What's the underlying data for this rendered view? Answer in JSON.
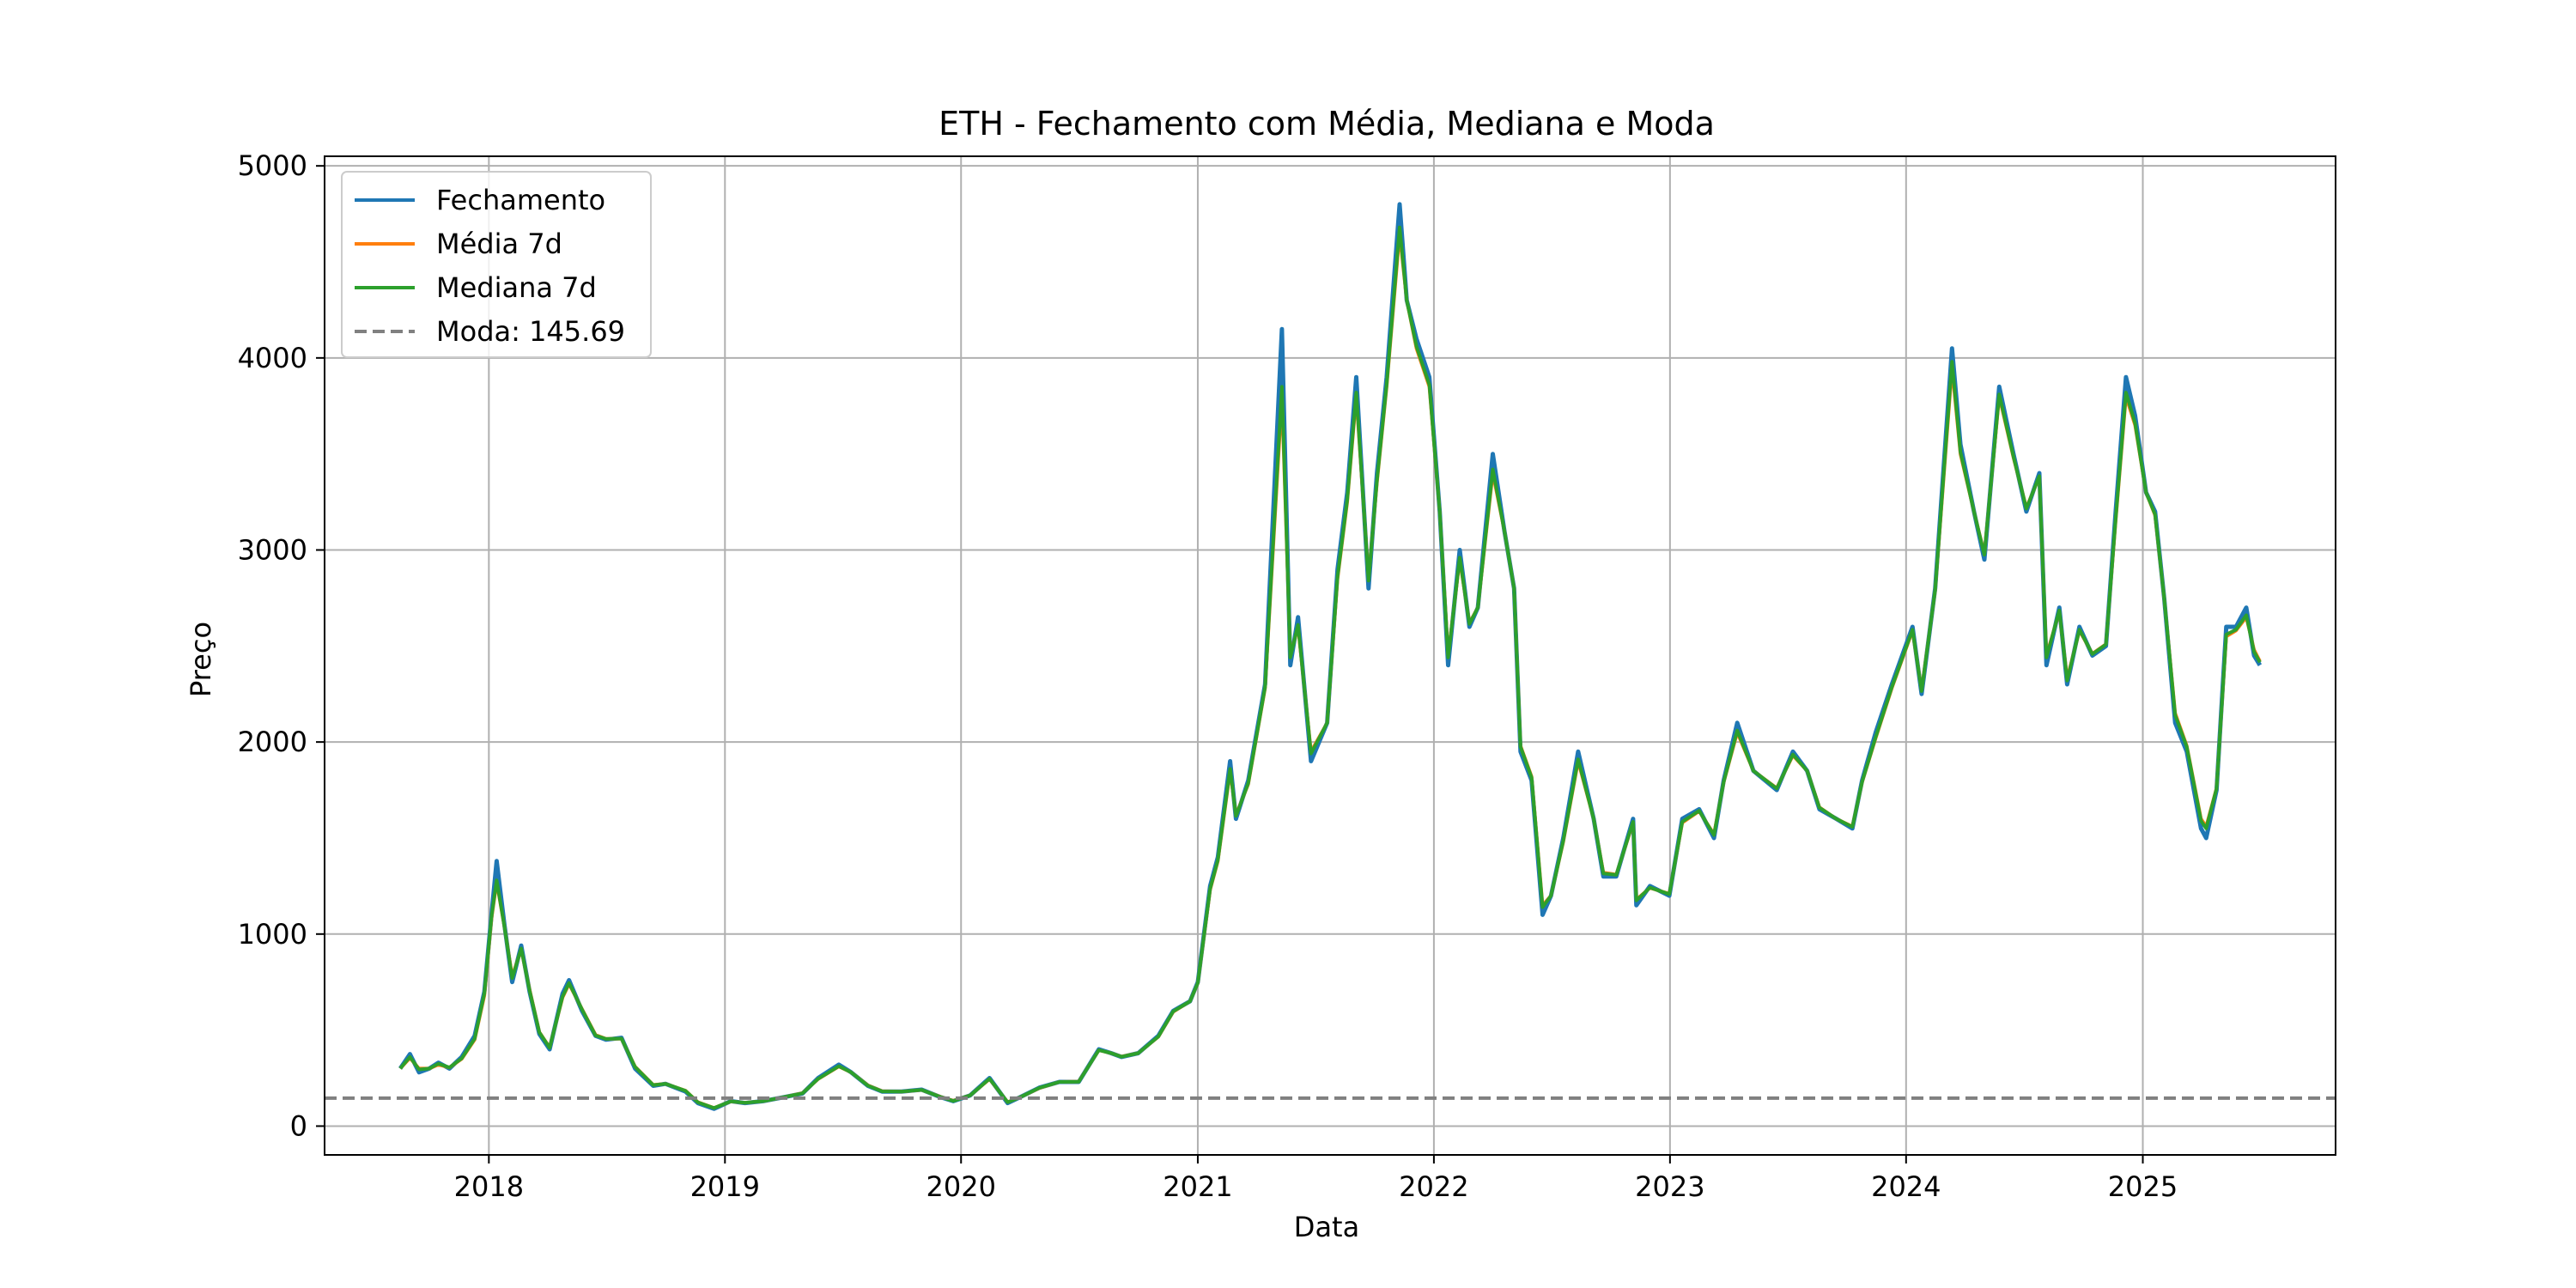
{
  "chart_data": {
    "type": "line",
    "title": "ETH - Fechamento com Média, Mediana e Moda",
    "xlabel": "Data",
    "ylabel": "Preço",
    "xlim": [
      "2017-04-22",
      "2025-10-26"
    ],
    "ylim": [
      -150,
      5050
    ],
    "x_ticks": [
      "2018",
      "2019",
      "2020",
      "2021",
      "2022",
      "2023",
      "2024",
      "2025"
    ],
    "y_ticks": [
      0,
      1000,
      2000,
      3000,
      4000,
      5000
    ],
    "grid": true,
    "legend_position": "upper-left",
    "mode_value": 145.69,
    "series": [
      {
        "name": "Fechamento",
        "color": "#1f77b4",
        "style": "solid"
      },
      {
        "name": "Média 7d",
        "color": "#ff7f0e",
        "style": "solid"
      },
      {
        "name": "Mediana 7d",
        "color": "#2ca02c",
        "style": "solid"
      },
      {
        "name": "Moda: 145.69",
        "color": "#808080",
        "style": "dashed"
      }
    ],
    "x": [
      "2017-08-17",
      "2017-09-01",
      "2017-09-15",
      "2017-10-01",
      "2017-10-15",
      "2017-11-01",
      "2017-11-20",
      "2017-12-10",
      "2017-12-25",
      "2018-01-05",
      "2018-01-13",
      "2018-01-25",
      "2018-02-06",
      "2018-02-20",
      "2018-03-05",
      "2018-03-20",
      "2018-04-05",
      "2018-04-25",
      "2018-05-05",
      "2018-05-25",
      "2018-06-15",
      "2018-07-01",
      "2018-07-25",
      "2018-08-15",
      "2018-09-12",
      "2018-10-01",
      "2018-11-01",
      "2018-11-20",
      "2018-12-15",
      "2019-01-10",
      "2019-02-01",
      "2019-03-01",
      "2019-04-01",
      "2019-05-01",
      "2019-05-25",
      "2019-06-26",
      "2019-07-15",
      "2019-08-10",
      "2019-09-01",
      "2019-10-01",
      "2019-11-01",
      "2019-12-01",
      "2019-12-20",
      "2020-01-15",
      "2020-02-14",
      "2020-03-13",
      "2020-04-01",
      "2020-05-01",
      "2020-06-01",
      "2020-07-01",
      "2020-08-01",
      "2020-08-20",
      "2020-09-05",
      "2020-10-01",
      "2020-11-01",
      "2020-11-24",
      "2020-12-20",
      "2021-01-01",
      "2021-01-20",
      "2021-02-01",
      "2021-02-20",
      "2021-03-01",
      "2021-03-20",
      "2021-04-15",
      "2021-05-11",
      "2021-05-24",
      "2021-06-05",
      "2021-06-25",
      "2021-07-20",
      "2021-08-05",
      "2021-08-20",
      "2021-09-03",
      "2021-09-22",
      "2021-10-05",
      "2021-10-20",
      "2021-11-09",
      "2021-11-20",
      "2021-12-05",
      "2021-12-25",
      "2022-01-10",
      "2022-01-23",
      "2022-02-10",
      "2022-02-25",
      "2022-03-10",
      "2022-04-02",
      "2022-04-20",
      "2022-05-05",
      "2022-05-15",
      "2022-06-01",
      "2022-06-18",
      "2022-07-01",
      "2022-07-20",
      "2022-08-12",
      "2022-09-05",
      "2022-09-20",
      "2022-10-10",
      "2022-11-05",
      "2022-11-10",
      "2022-12-01",
      "2022-12-31",
      "2023-01-20",
      "2023-02-15",
      "2023-03-10",
      "2023-03-25",
      "2023-04-15",
      "2023-05-10",
      "2023-06-15",
      "2023-07-10",
      "2023-08-01",
      "2023-08-20",
      "2023-09-15",
      "2023-10-10",
      "2023-10-25",
      "2023-11-15",
      "2023-12-10",
      "2024-01-11",
      "2024-01-25",
      "2024-02-15",
      "2024-03-12",
      "2024-03-25",
      "2024-04-15",
      "2024-05-01",
      "2024-05-24",
      "2024-06-15",
      "2024-07-05",
      "2024-07-25",
      "2024-08-05",
      "2024-08-25",
      "2024-09-06",
      "2024-09-25",
      "2024-10-15",
      "2024-11-05",
      "2024-11-20",
      "2024-12-06",
      "2024-12-20",
      "2025-01-06",
      "2025-01-20",
      "2025-02-03",
      "2025-02-20",
      "2025-03-10",
      "2025-04-01",
      "2025-04-09",
      "2025-04-25",
      "2025-05-10",
      "2025-05-25",
      "2025-06-10",
      "2025-06-22",
      "2025-07-01"
    ],
    "close": [
      300,
      375,
      280,
      300,
      330,
      300,
      360,
      470,
      700,
      1100,
      1380,
      1050,
      750,
      940,
      700,
      480,
      400,
      690,
      760,
      600,
      470,
      450,
      460,
      300,
      210,
      220,
      180,
      120,
      90,
      130,
      120,
      130,
      150,
      170,
      250,
      320,
      280,
      210,
      180,
      180,
      190,
      150,
      130,
      160,
      250,
      120,
      150,
      200,
      230,
      230,
      400,
      380,
      360,
      380,
      470,
      600,
      650,
      750,
      1250,
      1400,
      1900,
      1600,
      1800,
      2300,
      4150,
      2400,
      2650,
      1900,
      2100,
      2900,
      3300,
      3900,
      2800,
      3400,
      3900,
      4800,
      4300,
      4100,
      3900,
      3200,
      2400,
      3000,
      2600,
      2700,
      3500,
      3100,
      2800,
      1950,
      1800,
      1100,
      1200,
      1500,
      1950,
      1600,
      1300,
      1300,
      1600,
      1150,
      1250,
      1200,
      1600,
      1650,
      1500,
      1800,
      2100,
      1850,
      1750,
      1950,
      1850,
      1650,
      1600,
      1550,
      1800,
      2050,
      2300,
      2600,
      2250,
      2800,
      4050,
      3550,
      3200,
      2950,
      3850,
      3500,
      3200,
      3400,
      2400,
      2700,
      2300,
      2600,
      2450,
      2500,
      3200,
      3900,
      3700,
      3300,
      3200,
      2750,
      2100,
      1950,
      1550,
      1500,
      1750,
      2600,
      2600,
      2700,
      2450,
      2400
    ],
    "mean7d": [
      300,
      355,
      300,
      300,
      320,
      305,
      350,
      450,
      680,
      1080,
      1270,
      1040,
      780,
      920,
      710,
      490,
      410,
      670,
      740,
      610,
      475,
      455,
      455,
      310,
      215,
      220,
      185,
      125,
      95,
      128,
      122,
      130,
      150,
      172,
      245,
      310,
      280,
      212,
      182,
      180,
      188,
      152,
      132,
      160,
      245,
      125,
      150,
      198,
      230,
      232,
      395,
      380,
      362,
      380,
      465,
      595,
      650,
      745,
      1230,
      1380,
      1850,
      1620,
      1780,
      2280,
      3800,
      2450,
      2600,
      1950,
      2100,
      2850,
      3250,
      3800,
      2850,
      3350,
      3850,
      4650,
      4300,
      4050,
      3850,
      3200,
      2450,
      2950,
      2620,
      2700,
      3400,
      3100,
      2800,
      1980,
      1820,
      1150,
      1200,
      1480,
      1900,
      1600,
      1320,
      1310,
      1580,
      1180,
      1240,
      1210,
      1580,
      1640,
      1520,
      1790,
      2050,
      1850,
      1760,
      1930,
      1850,
      1660,
      1600,
      1560,
      1790,
      2020,
      2280,
      2580,
      2270,
      2790,
      3950,
      3500,
      3200,
      2980,
      3800,
      3480,
      3220,
      3380,
      2450,
      2680,
      2330,
      2580,
      2460,
      2510,
      3150,
      3800,
      3650,
      3300,
      3180,
      2750,
      2150,
      1980,
      1600,
      1560,
      1760,
      2550,
      2580,
      2650,
      2480,
      2420
    ],
    "median7d": [
      300,
      360,
      295,
      300,
      325,
      305,
      352,
      455,
      690,
      1090,
      1280,
      1040,
      770,
      925,
      705,
      488,
      408,
      675,
      745,
      608,
      472,
      454,
      456,
      308,
      214,
      220,
      184,
      124,
      94,
      129,
      122,
      130,
      150,
      171,
      246,
      312,
      280,
      211,
      181,
      180,
      189,
      151,
      131,
      160,
      246,
      124,
      150,
      199,
      230,
      231,
      396,
      380,
      361,
      380,
      466,
      597,
      650,
      746,
      1235,
      1385,
      1860,
      1615,
      1785,
      2285,
      3850,
      2440,
      2610,
      1940,
      2100,
      2860,
      3260,
      3820,
      2840,
      3360,
      3860,
      4680,
      4300,
      4060,
      3860,
      3200,
      2440,
      2960,
      2615,
      2700,
      3420,
      3100,
      2800,
      1975,
      1815,
      1140,
      1200,
      1485,
      1910,
      1600,
      1315,
      1308,
      1585,
      1175,
      1242,
      1208,
      1585,
      1642,
      1515,
      1792,
      2060,
      1850,
      1758,
      1935,
      1850,
      1658,
      1600,
      1558,
      1792,
      2025,
      2285,
      2585,
      2265,
      2792,
      3980,
      3510,
      3200,
      2975,
      3810,
      3485,
      3215,
      3385,
      2440,
      2685,
      2320,
      2585,
      2458,
      2508,
      3160,
      3820,
      3660,
      3300,
      3185,
      2750,
      2140,
      1975,
      1590,
      1550,
      1758,
      2560,
      2585,
      2660,
      2470,
      2415
    ]
  }
}
